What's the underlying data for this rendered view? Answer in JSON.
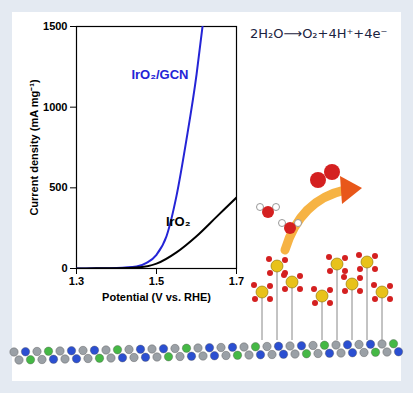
{
  "chart_data": {
    "type": "line",
    "x_label": "Potential (V vs. RHE)",
    "y_label": "Current density (mA mg⁻¹)",
    "xlim": [
      1.3,
      1.7
    ],
    "xticks": [
      1.3,
      1.5,
      1.7
    ],
    "ylim": [
      0,
      1500
    ],
    "yticks": [
      0,
      500,
      1000,
      1500
    ],
    "annotations": [
      "2H₂O⟶O₂+4H⁺+4e⁻"
    ],
    "series": [
      {
        "name": "IrO₂/GCN",
        "color": "#2424d6",
        "x": [
          1.3,
          1.35,
          1.4,
          1.45,
          1.475,
          1.5,
          1.525,
          1.55,
          1.575,
          1.6,
          1.615
        ],
        "values": [
          0,
          1,
          3,
          12,
          35,
          85,
          200,
          450,
          800,
          1200,
          1500
        ]
      },
      {
        "name": "IrO₂",
        "color": "#000000",
        "x": [
          1.3,
          1.35,
          1.4,
          1.45,
          1.5,
          1.55,
          1.6,
          1.65,
          1.7
        ],
        "values": [
          0,
          1,
          2,
          6,
          30,
          100,
          200,
          320,
          440
        ]
      }
    ]
  }
}
